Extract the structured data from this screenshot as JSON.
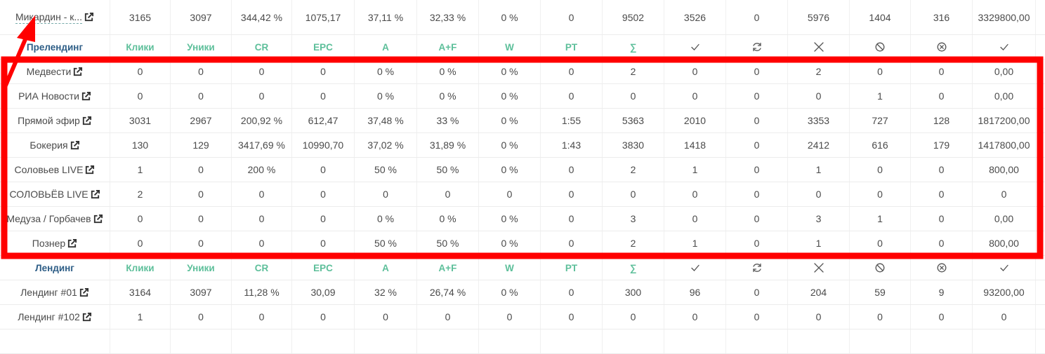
{
  "columns_count": 17,
  "top_row": {
    "name": "Микардин - к...",
    "cells": [
      "3165",
      "3097",
      "344,42 %",
      "1075,17",
      "37,11 %",
      "32,33 %",
      "0 %",
      "0",
      "9502",
      "3526",
      "0",
      "5976",
      "1404",
      "316",
      "3329800,00"
    ]
  },
  "section_prelanding": {
    "header": {
      "name_label": "Прелендинг",
      "cols": [
        "Клики",
        "Уники",
        "CR",
        "EPC",
        "A",
        "A+F",
        "W",
        "PT",
        "∑",
        "check-icon",
        "refresh-icon",
        "cross-icon",
        "ban-icon",
        "cancel-circle-icon",
        "check-icon"
      ]
    },
    "rows": [
      {
        "name": "Медвести",
        "cells": [
          "0",
          "0",
          "0",
          "0",
          "0 %",
          "0 %",
          "0 %",
          "0",
          "2",
          "0",
          "0",
          "2",
          "0",
          "0",
          "0,00"
        ]
      },
      {
        "name": "РИА Новости",
        "cells": [
          "0",
          "0",
          "0",
          "0",
          "0 %",
          "0 %",
          "0 %",
          "0",
          "0",
          "0",
          "0",
          "0",
          "1",
          "0",
          "0,00"
        ]
      },
      {
        "name": "Прямой эфир",
        "cells": [
          "3031",
          "2967",
          "200,92 %",
          "612,47",
          "37,48 %",
          "33 %",
          "0 %",
          "1:55",
          "5363",
          "2010",
          "0",
          "3353",
          "727",
          "128",
          "1817200,00"
        ]
      },
      {
        "name": "Бокерия",
        "cells": [
          "130",
          "129",
          "3417,69 %",
          "10990,70",
          "37,02 %",
          "31,89 %",
          "0 %",
          "1:43",
          "3830",
          "1418",
          "0",
          "2412",
          "616",
          "179",
          "1417800,00"
        ]
      },
      {
        "name": "Соловьев LIVE",
        "cells": [
          "1",
          "0",
          "200 %",
          "0",
          "50 %",
          "50 %",
          "0 %",
          "0",
          "2",
          "1",
          "0",
          "1",
          "0",
          "0",
          "800,00"
        ]
      },
      {
        "name": "СОЛОВЬЁВ LIVE",
        "cells": [
          "2",
          "0",
          "0",
          "0",
          "0",
          "0",
          "0",
          "0",
          "0",
          "0",
          "0",
          "0",
          "0",
          "0",
          "0"
        ]
      },
      {
        "name": "Медуза / Горбачев",
        "cells": [
          "0",
          "0",
          "0",
          "0",
          "0 %",
          "0 %",
          "0 %",
          "0",
          "3",
          "0",
          "0",
          "3",
          "1",
          "0",
          "0,00"
        ]
      },
      {
        "name": "Познер",
        "cells": [
          "0",
          "0",
          "0",
          "0",
          "50 %",
          "50 %",
          "0 %",
          "0",
          "2",
          "1",
          "0",
          "1",
          "0",
          "0",
          "800,00"
        ]
      }
    ]
  },
  "section_landing": {
    "header": {
      "name_label": "Лендинг",
      "cols": [
        "Клики",
        "Уники",
        "CR",
        "EPC",
        "A",
        "A+F",
        "W",
        "PT",
        "∑",
        "check-icon",
        "refresh-icon",
        "cross-icon",
        "ban-icon",
        "cancel-circle-icon",
        "check-icon"
      ]
    },
    "rows": [
      {
        "name": "Лендинг #01",
        "cells": [
          "3164",
          "3097",
          "11,28 %",
          "30,09",
          "32 %",
          "26,74 %",
          "0 %",
          "0",
          "300",
          "96",
          "0",
          "204",
          "59",
          "9",
          "93200,00"
        ]
      },
      {
        "name": "Лендинг #102",
        "cells": [
          "1",
          "0",
          "0",
          "0",
          "0",
          "0",
          "0",
          "0",
          "0",
          "0",
          "0",
          "0",
          "0",
          "0",
          "0"
        ]
      }
    ]
  },
  "annotation_colors": {
    "highlight": "#ff0000"
  }
}
